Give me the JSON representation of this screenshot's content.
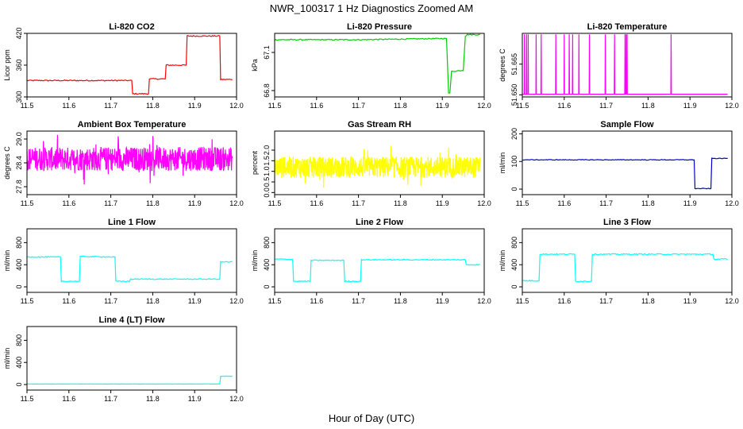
{
  "title": "NWR_100317  1 Hz Diagnostics Zoomed AM",
  "xlabel": "Hour of Day (UTC)",
  "chart_data": [
    {
      "type": "line",
      "title": "Li-820 CO2",
      "ylabel": "Licor ppm",
      "color": "#ff0000",
      "xlim": [
        11.5,
        12.0
      ],
      "ylim": [
        300,
        420
      ],
      "xticks": [
        "11.5",
        "11.6",
        "11.7",
        "11.8",
        "11.9",
        "12.0"
      ],
      "yticks": [
        "300",
        "360",
        "420"
      ],
      "noise": 1,
      "x": [
        11.5,
        11.75,
        11.752,
        11.79,
        11.792,
        11.83,
        11.832,
        11.88,
        11.882,
        11.96,
        11.962,
        11.99
      ],
      "y": [
        331,
        331,
        306,
        306,
        334,
        334,
        360,
        360,
        415,
        415,
        333,
        333
      ]
    },
    {
      "type": "line",
      "title": "Li-820 Pressure",
      "ylabel": "kPa",
      "color": "#00cc00",
      "xlim": [
        11.5,
        12.0
      ],
      "ylim": [
        66.75,
        67.25
      ],
      "xticks": [
        "11.5",
        "11.6",
        "11.7",
        "11.8",
        "11.9",
        "12.0"
      ],
      "yticks": [
        "66.8",
        "67.1"
      ],
      "noise": 0.004,
      "x": [
        11.5,
        11.7,
        11.91,
        11.915,
        11.918,
        11.922,
        11.95,
        11.955,
        11.96,
        11.99
      ],
      "y": [
        67.2,
        67.2,
        67.21,
        66.78,
        66.78,
        66.95,
        66.96,
        67.23,
        67.24,
        67.24
      ]
    },
    {
      "type": "line",
      "title": "Li-820 Temperature",
      "ylabel": "degrees C",
      "color": "#ff00ff",
      "xlim": [
        11.5,
        12.0
      ],
      "ylim": [
        51.649,
        51.68
      ],
      "xticks": [
        "11.5",
        "11.6",
        "11.7",
        "11.8",
        "11.9",
        "12.0"
      ],
      "yticks": [
        "51.650",
        "51.665"
      ],
      "baseline": 51.6503,
      "spike_top": 51.6795,
      "spikes_x": [
        11.505,
        11.51,
        11.514,
        11.533,
        11.545,
        11.58,
        11.6,
        11.612,
        11.62,
        11.635,
        11.66,
        11.698,
        11.72,
        11.745,
        11.748,
        11.75,
        11.855
      ]
    },
    {
      "type": "line",
      "title": "Ambient Box Temperature",
      "ylabel": "degrees C",
      "color": "#ff00ff",
      "xlim": [
        11.5,
        12.0
      ],
      "ylim": [
        27.6,
        29.2
      ],
      "xticks": [
        "11.5",
        "11.6",
        "11.7",
        "11.8",
        "11.9",
        "12.0"
      ],
      "yticks": [
        "27.8",
        "28.4",
        "29.0"
      ],
      "noise_band": [
        28.2,
        28.8
      ],
      "noise_center": 28.5
    },
    {
      "type": "line",
      "title": "Gas Stream RH",
      "ylabel": "percent",
      "color": "#ffff00",
      "xlim": [
        11.5,
        12.0
      ],
      "ylim": [
        -0.1,
        2.9
      ],
      "xticks": [
        "11.5",
        "11.6",
        "11.7",
        "11.8",
        "11.9",
        "12.0"
      ],
      "yticks": [
        "0.0",
        "0.5",
        "1.0",
        "1.5",
        "2.0"
      ],
      "noise_band": [
        0.7,
        1.7
      ],
      "noise_center": 1.2
    },
    {
      "type": "line",
      "title": "Sample Flow",
      "ylabel": "ml/min",
      "color": "#0000cc",
      "xlim": [
        11.5,
        12.0
      ],
      "ylim": [
        -20,
        210
      ],
      "xticks": [
        "11.5",
        "11.6",
        "11.7",
        "11.8",
        "11.9",
        "12.0"
      ],
      "yticks": [
        "0",
        "100",
        "200"
      ],
      "noise": 1.2,
      "x": [
        11.5,
        11.91,
        11.912,
        11.95,
        11.952,
        11.99
      ],
      "y": [
        106,
        106,
        2,
        2,
        111,
        111
      ]
    },
    {
      "type": "line",
      "title": "Line 1 Flow",
      "ylabel": "ml/min",
      "color": "#00ffff",
      "xlim": [
        11.5,
        12.0
      ],
      "ylim": [
        -100,
        1050
      ],
      "xticks": [
        "11.5",
        "11.6",
        "11.7",
        "11.8",
        "11.9",
        "12.0"
      ],
      "yticks": [
        "0",
        "400",
        "800"
      ],
      "noise": 8,
      "x": [
        11.5,
        11.58,
        11.582,
        11.625,
        11.627,
        11.71,
        11.712,
        11.745,
        11.747,
        11.96,
        11.962,
        11.99
      ],
      "y": [
        540,
        540,
        100,
        100,
        550,
        540,
        100,
        100,
        140,
        140,
        450,
        450
      ]
    },
    {
      "type": "line",
      "title": "Line 2 Flow",
      "ylabel": "ml/min",
      "color": "#00ffff",
      "xlim": [
        11.5,
        12.0
      ],
      "ylim": [
        -100,
        1050
      ],
      "xticks": [
        "11.5",
        "11.6",
        "11.7",
        "11.8",
        "11.9",
        "12.0"
      ],
      "yticks": [
        "0",
        "400",
        "800"
      ],
      "noise": 8,
      "x": [
        11.5,
        11.543,
        11.545,
        11.585,
        11.587,
        11.665,
        11.667,
        11.705,
        11.707,
        11.955,
        11.957,
        11.99
      ],
      "y": [
        500,
        500,
        100,
        100,
        480,
        480,
        100,
        100,
        490,
        490,
        400,
        400
      ]
    },
    {
      "type": "line",
      "title": "Line 3 Flow",
      "ylabel": "ml/min",
      "color": "#00ffff",
      "xlim": [
        11.5,
        12.0
      ],
      "ylim": [
        -100,
        1050
      ],
      "xticks": [
        "11.5",
        "11.6",
        "11.7",
        "11.8",
        "11.9",
        "12.0"
      ],
      "yticks": [
        "0",
        "400",
        "800"
      ],
      "noise": 10,
      "x": [
        11.5,
        11.54,
        11.542,
        11.625,
        11.627,
        11.665,
        11.667,
        11.955,
        11.957,
        11.99
      ],
      "y": [
        110,
        110,
        590,
        590,
        100,
        100,
        590,
        590,
        500,
        500
      ]
    },
    {
      "type": "line",
      "title": "Line 4 (LT) Flow",
      "ylabel": "ml/min",
      "color": "#00ffff",
      "xlim": [
        11.5,
        12.0
      ],
      "ylim": [
        -100,
        1050
      ],
      "xticks": [
        "11.5",
        "11.6",
        "11.7",
        "11.8",
        "11.9",
        "12.0"
      ],
      "yticks": [
        "0",
        "400",
        "800"
      ],
      "noise": 2,
      "x": [
        11.5,
        11.96,
        11.962,
        11.99
      ],
      "y": [
        10,
        10,
        150,
        150
      ]
    }
  ]
}
